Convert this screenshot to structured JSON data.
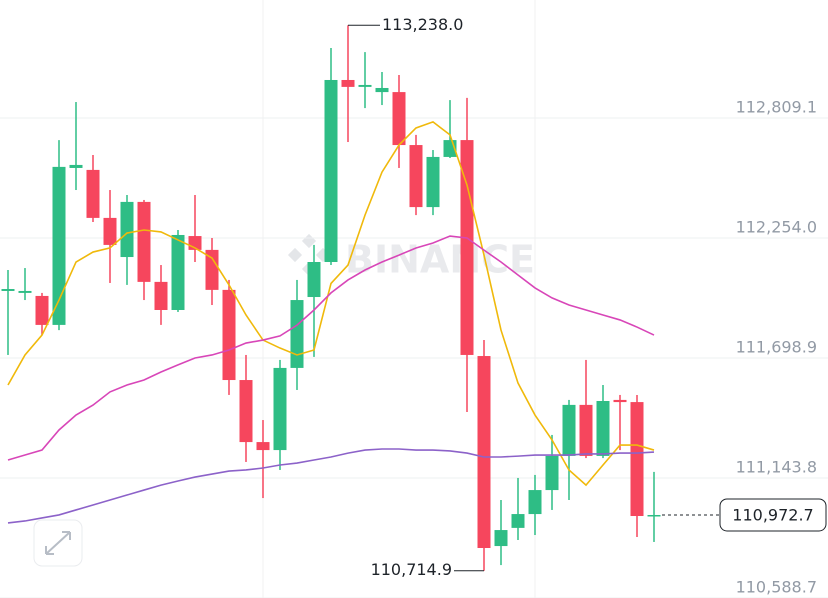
{
  "chart_data": {
    "type": "candlestick",
    "watermark": "BINANCE",
    "up_color": "#2ebd85",
    "down_color": "#f6465d",
    "open": [
      112009,
      112000,
      111986,
      111852,
      112578,
      112569,
      112347,
      112166,
      112421,
      112051,
      111921,
      112263,
      112199,
      112014,
      111597,
      111310,
      111273,
      111653,
      111981,
      112143,
      112985,
      112953,
      112929,
      112929,
      112684,
      112397,
      112629,
      112707,
      111708,
      110829,
      110913,
      110977,
      111088,
      111246,
      111482,
      111246,
      111505,
      111495,
      110968
    ],
    "high": [
      112106,
      112115,
      112000,
      112707,
      112883,
      112638,
      112476,
      112453,
      112430,
      112129,
      112291,
      112453,
      112254,
      112060,
      111713,
      111412,
      111690,
      112060,
      112222,
      113133,
      113238,
      113114,
      113022,
      113008,
      112731,
      112661,
      112892,
      112902,
      111782,
      111042,
      111144,
      111158,
      111343,
      111505,
      111690,
      111574,
      111528,
      111528,
      111172
    ],
    "low": [
      111713,
      111967,
      111805,
      111828,
      112476,
      112328,
      112046,
      112037,
      111967,
      111852,
      111912,
      112143,
      111944,
      111528,
      111218,
      111051,
      111181,
      111551,
      111704,
      112129,
      112698,
      112855,
      112869,
      112578,
      112360,
      112360,
      112624,
      111449,
      110714.9,
      110741,
      110857,
      110880,
      110996,
      111042,
      111236,
      111236,
      111273,
      110871,
      110848
    ],
    "close": [
      112018,
      112009,
      111852,
      112583,
      112592,
      112347,
      112222,
      112421,
      112051,
      111921,
      112268,
      112199,
      112014,
      111597,
      111310,
      111273,
      111653,
      111967,
      112143,
      112985,
      112953,
      112962,
      112948,
      112684,
      112397,
      112629,
      112707,
      111713,
      110820,
      110903,
      110977,
      111088,
      111246,
      111482,
      111246,
      111500,
      111495,
      110968,
      110972.7
    ],
    "series": [
      {
        "color": "#f0b90b",
        "values": [
          111574,
          111713,
          111805,
          111967,
          112143,
          112189,
          112208,
          112277,
          112291,
          112282,
          112245,
          112208,
          112161,
          112037,
          111898,
          111782,
          111745,
          111713,
          111736,
          112044,
          112129,
          112360,
          112559,
          112684,
          112763,
          112791,
          112731,
          112499,
          112175,
          111828,
          111583,
          111435,
          111320,
          111181,
          111111,
          111204,
          111296,
          111296,
          111273
        ]
      },
      {
        "color": "#d846b8",
        "values": [
          111227,
          111250,
          111273,
          111366,
          111435,
          111481,
          111542,
          111574,
          111597,
          111634,
          111667,
          111699,
          111713,
          111736,
          111768,
          111782,
          111801,
          111851,
          111921,
          112000,
          112060,
          112106,
          112143,
          112175,
          112208,
          112231,
          112263,
          112254,
          112198,
          112143,
          112083,
          112023,
          111977,
          111944,
          111921,
          111898,
          111875,
          111842,
          111805
        ]
      },
      {
        "color": "#8c62c9",
        "values": [
          110936,
          110945,
          110959,
          110973,
          110996,
          111019,
          111042,
          111065,
          111088,
          111111,
          111130,
          111148,
          111162,
          111176,
          111181,
          111190,
          111204,
          111213,
          111227,
          111241,
          111259,
          111273,
          111278,
          111278,
          111273,
          111273,
          111269,
          111259,
          111241,
          111241,
          111245,
          111250,
          111250,
          111250,
          111255,
          111255,
          111259,
          111259,
          111264
        ]
      }
    ],
    "ylim": [
      110588.7,
      113355
    ],
    "yticks": [
      {
        "value": 112809.1,
        "label": "112,809.1"
      },
      {
        "value": 112254.0,
        "label": "112,254.0"
      },
      {
        "value": 111698.9,
        "label": "111,698.9"
      },
      {
        "value": 111143.8,
        "label": "111,143.8"
      },
      {
        "value": 110588.7,
        "label": "110,588.7"
      }
    ],
    "grid": true,
    "annotations": [
      {
        "value": 113238,
        "label": "113,238.0",
        "side": "high"
      },
      {
        "value": 110714.9,
        "label": "110,714.9",
        "side": "low"
      }
    ],
    "last_price": {
      "value": 110972.7,
      "label": "110,972.7"
    }
  }
}
